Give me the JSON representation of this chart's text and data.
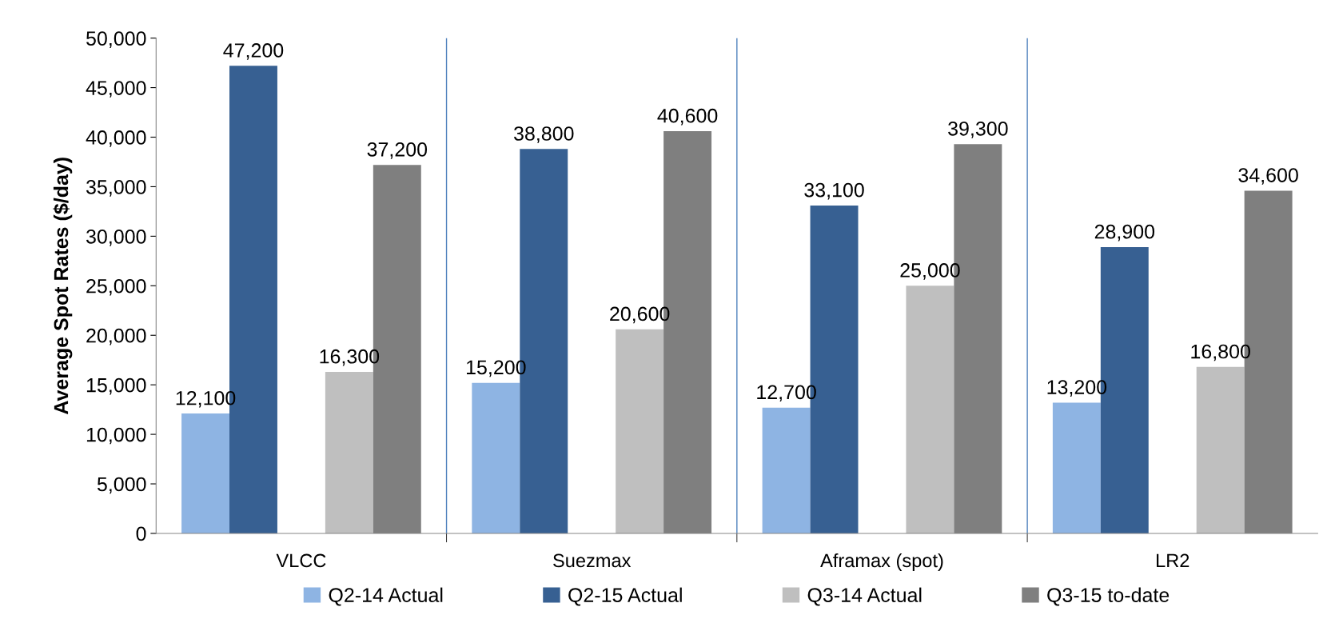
{
  "chart_data": {
    "type": "bar",
    "ylabel": "Average Spot Rates ($/day)",
    "categories": [
      "VLCC",
      "Suezmax",
      "Aframax (spot)",
      "LR2"
    ],
    "series": [
      {
        "name": "Q2-14 Actual",
        "color": "#8eb4e3",
        "values": [
          12100,
          15200,
          12700,
          13200
        ],
        "value_labels": [
          "12,100",
          "15,200",
          "12,700",
          "13,200"
        ]
      },
      {
        "name": "Q2-15 Actual",
        "color": "#376092",
        "values": [
          47200,
          38800,
          33100,
          28900
        ],
        "value_labels": [
          "47,200",
          "38,800",
          "33,100",
          "28,900"
        ]
      },
      {
        "name": "Q3-14 Actual",
        "color": "#bfbfbf",
        "values": [
          16300,
          20600,
          25000,
          16800
        ],
        "value_labels": [
          "16,300",
          "20,600",
          "25,000",
          "16,800"
        ]
      },
      {
        "name": "Q3-15 to-date",
        "color": "#7f7f7f",
        "values": [
          37200,
          40600,
          39300,
          34600
        ],
        "value_labels": [
          "37,200",
          "40,600",
          "39,300",
          "34,600"
        ]
      }
    ],
    "ylim": [
      0,
      50000
    ],
    "yticks": [
      {
        "value": 0,
        "label": "0"
      },
      {
        "value": 5000,
        "label": "5,000"
      },
      {
        "value": 10000,
        "label": "10,000"
      },
      {
        "value": 15000,
        "label": "15,000"
      },
      {
        "value": 20000,
        "label": "20,000"
      },
      {
        "value": 25000,
        "label": "25,000"
      },
      {
        "value": 30000,
        "label": "30,000"
      },
      {
        "value": 35000,
        "label": "35,000"
      },
      {
        "value": 40000,
        "label": "40,000"
      },
      {
        "value": 45000,
        "label": "45,000"
      },
      {
        "value": 50000,
        "label": "50,000"
      }
    ],
    "grid": "x",
    "legend": "bottom"
  }
}
